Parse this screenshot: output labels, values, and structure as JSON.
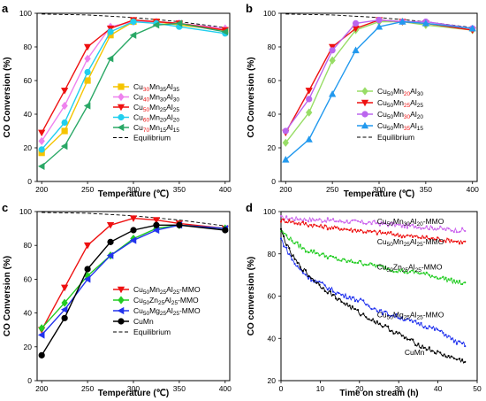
{
  "colors": {
    "frame": "#000000",
    "equilibrium": "#000000",
    "yellow": "#f5c400",
    "pink": "#ee82ee",
    "red": "#ee1111",
    "cyan": "#22cfee",
    "teal": "#2aa866",
    "lightgreen": "#98dd66",
    "purple": "#bb66ee",
    "blue": "#2299ee",
    "green": "#22cc22",
    "darkblue": "#2233ee",
    "black": "#000000",
    "violet": "#cc66ee"
  },
  "chart_data": [
    {
      "id": "a",
      "type": "line",
      "panel_label": "a",
      "xlabel": "Temperature (℃)",
      "ylabel": "CO Conversion (%)",
      "xlim": [
        195,
        405
      ],
      "ylim": [
        0,
        100
      ],
      "xticks": [
        200,
        250,
        300,
        350,
        400
      ],
      "yticks": [
        0,
        20,
        40,
        60,
        80,
        100
      ],
      "legend_position": "center-right",
      "series": [
        {
          "name": "Cu30Mn35Al35",
          "label_parts": [
            [
              "Cu",
              "k"
            ],
            [
              "30",
              "r"
            ],
            [
              "Mn",
              "k"
            ],
            [
              "35",
              "k"
            ],
            [
              "Al",
              "k"
            ],
            [
              "35",
              "k"
            ]
          ],
          "color": "yellow",
          "marker": "square",
          "x": [
            200,
            225,
            250,
            275,
            300,
            325,
            350,
            400
          ],
          "y": [
            17,
            30,
            60,
            87,
            95,
            95,
            93,
            90
          ]
        },
        {
          "name": "Cu40Mn30Al30",
          "label_parts": [
            [
              "Cu",
              "k"
            ],
            [
              "40",
              "r"
            ],
            [
              "Mn",
              "k"
            ],
            [
              "30",
              "k"
            ],
            [
              "Al",
              "k"
            ],
            [
              "30",
              "k"
            ]
          ],
          "color": "pink",
          "marker": "diamond",
          "x": [
            200,
            225,
            250,
            275,
            300,
            325,
            350,
            400
          ],
          "y": [
            24,
            45,
            73,
            92,
            95,
            95,
            94,
            91
          ]
        },
        {
          "name": "Cu50Mn25Al25",
          "label_parts": [
            [
              "Cu",
              "k"
            ],
            [
              "50",
              "r"
            ],
            [
              "Mn",
              "k"
            ],
            [
              "25",
              "k"
            ],
            [
              "Al",
              "k"
            ],
            [
              "25",
              "k"
            ]
          ],
          "color": "red",
          "marker": "triangle-down",
          "x": [
            200,
            225,
            250,
            275,
            300,
            325,
            350,
            400
          ],
          "y": [
            29,
            54,
            80,
            91,
            96,
            95,
            94,
            90
          ]
        },
        {
          "name": "Cu60Mn20Al20",
          "label_parts": [
            [
              "Cu",
              "k"
            ],
            [
              "60",
              "r"
            ],
            [
              "Mn",
              "k"
            ],
            [
              "20",
              "k"
            ],
            [
              "Al",
              "k"
            ],
            [
              "20",
              "k"
            ]
          ],
          "color": "cyan",
          "marker": "circle",
          "x": [
            200,
            225,
            250,
            275,
            300,
            325,
            350,
            400
          ],
          "y": [
            19,
            35,
            65,
            89,
            95,
            94,
            92,
            88
          ]
        },
        {
          "name": "Cu70Mn15Al15",
          "label_parts": [
            [
              "Cu",
              "k"
            ],
            [
              "70",
              "r"
            ],
            [
              "Mn",
              "k"
            ],
            [
              "15",
              "k"
            ],
            [
              "Al",
              "k"
            ],
            [
              "15",
              "k"
            ]
          ],
          "color": "teal",
          "marker": "triangle-left",
          "x": [
            200,
            225,
            250,
            275,
            300,
            325,
            350,
            400
          ],
          "y": [
            9,
            21,
            45,
            73,
            87,
            93,
            94,
            89
          ]
        }
      ],
      "equilibrium": {
        "name": "Equilibrium",
        "x": [
          200,
          250,
          300,
          350,
          400
        ],
        "y": [
          99.5,
          99,
          97.5,
          95,
          91.5
        ]
      }
    },
    {
      "id": "b",
      "type": "line",
      "panel_label": "b",
      "xlabel": "Temperature (℃)",
      "ylabel": "CO Conversion (%)",
      "xlim": [
        195,
        405
      ],
      "ylim": [
        0,
        100
      ],
      "xticks": [
        200,
        250,
        300,
        350,
        400
      ],
      "yticks": [
        0,
        20,
        40,
        60,
        80,
        100
      ],
      "legend_position": "center-right",
      "series": [
        {
          "name": "Cu50Mn20Al30",
          "label_parts": [
            [
              "Cu",
              "k"
            ],
            [
              "50",
              "k"
            ],
            [
              "Mn",
              "k"
            ],
            [
              "20",
              "r"
            ],
            [
              "Al",
              "k"
            ],
            [
              "30",
              "k"
            ]
          ],
          "color": "lightgreen",
          "marker": "diamond",
          "x": [
            200,
            225,
            250,
            275,
            300,
            325,
            350,
            400
          ],
          "y": [
            23,
            41,
            72,
            90,
            95,
            95,
            93,
            90
          ]
        },
        {
          "name": "Cu50Mn25Al25",
          "label_parts": [
            [
              "Cu",
              "k"
            ],
            [
              "50",
              "k"
            ],
            [
              "Mn",
              "k"
            ],
            [
              "25",
              "r"
            ],
            [
              "Al",
              "k"
            ],
            [
              "25",
              "k"
            ]
          ],
          "color": "red",
          "marker": "triangle-down",
          "x": [
            200,
            225,
            250,
            275,
            300,
            325,
            350,
            400
          ],
          "y": [
            29,
            54,
            80,
            91,
            96,
            95,
            94,
            90
          ]
        },
        {
          "name": "Cu50Mn30Al20",
          "label_parts": [
            [
              "Cu",
              "k"
            ],
            [
              "50",
              "k"
            ],
            [
              "Mn",
              "k"
            ],
            [
              "30",
              "r"
            ],
            [
              "Al",
              "k"
            ],
            [
              "20",
              "k"
            ]
          ],
          "color": "purple",
          "marker": "circle",
          "x": [
            200,
            225,
            250,
            275,
            300,
            325,
            350,
            400
          ],
          "y": [
            30,
            49,
            78,
            94,
            96,
            95,
            95,
            91
          ]
        },
        {
          "name": "Cu50Mn35Al15",
          "label_parts": [
            [
              "Cu",
              "k"
            ],
            [
              "50",
              "k"
            ],
            [
              "Mn",
              "k"
            ],
            [
              "35",
              "r"
            ],
            [
              "Al",
              "k"
            ],
            [
              "15",
              "k"
            ]
          ],
          "color": "blue",
          "marker": "triangle-up",
          "x": [
            200,
            225,
            250,
            275,
            300,
            325,
            350,
            400
          ],
          "y": [
            13,
            25,
            52,
            78,
            92,
            95,
            94,
            91
          ]
        }
      ],
      "equilibrium": {
        "name": "Equilibrium",
        "x": [
          200,
          250,
          300,
          350,
          400
        ],
        "y": [
          99.5,
          99,
          97.5,
          95,
          91.5
        ]
      }
    },
    {
      "id": "c",
      "type": "line",
      "panel_label": "c",
      "xlabel": "Temperature (℃)",
      "ylabel": "CO Conversion (%)",
      "xlim": [
        195,
        405
      ],
      "ylim": [
        0,
        100
      ],
      "xticks": [
        200,
        250,
        300,
        350,
        400
      ],
      "yticks": [
        0,
        20,
        40,
        60,
        80,
        100
      ],
      "legend_position": "bottom-right",
      "series": [
        {
          "name": "Cu50Mn25Al25-MMO",
          "label_parts": [
            [
              "Cu",
              "k"
            ],
            [
              "50",
              "k"
            ],
            [
              "Mn",
              "k"
            ],
            [
              "25",
              "k"
            ],
            [
              "Al",
              "k"
            ],
            [
              "25",
              "k"
            ],
            [
              "-MMO",
              "k"
            ]
          ],
          "color": "red",
          "marker": "triangle-down",
          "x": [
            200,
            225,
            250,
            275,
            300,
            325,
            350,
            400
          ],
          "y": [
            30,
            55,
            80,
            92,
            96,
            95,
            93,
            90
          ]
        },
        {
          "name": "Cu50Zn25Al25-MMO",
          "label_parts": [
            [
              "Cu",
              "k"
            ],
            [
              "50",
              "k"
            ],
            [
              "Zn",
              "k"
            ],
            [
              "25",
              "k"
            ],
            [
              "Al",
              "k"
            ],
            [
              "25",
              "k"
            ],
            [
              "-MMO",
              "k"
            ]
          ],
          "color": "green",
          "marker": "diamond",
          "x": [
            200,
            225,
            250,
            275,
            300,
            325,
            350,
            400
          ],
          "y": [
            31,
            46,
            62,
            74,
            84,
            90,
            92,
            90
          ]
        },
        {
          "name": "Cu50Mg25Al25-MMO",
          "label_parts": [
            [
              "Cu",
              "k"
            ],
            [
              "50",
              "k"
            ],
            [
              "Mg",
              "k"
            ],
            [
              "25",
              "k"
            ],
            [
              "Al",
              "k"
            ],
            [
              "25",
              "k"
            ],
            [
              "-MMO",
              "k"
            ]
          ],
          "color": "darkblue",
          "marker": "triangle-left",
          "x": [
            200,
            225,
            250,
            275,
            300,
            325,
            350,
            400
          ],
          "y": [
            27,
            42,
            60,
            74,
            83,
            89,
            92,
            90
          ]
        },
        {
          "name": "CuMn",
          "label_parts": [
            [
              "CuMn",
              "k"
            ]
          ],
          "color": "black",
          "marker": "circle",
          "x": [
            200,
            225,
            250,
            275,
            300,
            325,
            350,
            400
          ],
          "y": [
            15,
            37,
            66,
            82,
            89,
            92,
            92,
            89
          ]
        }
      ],
      "equilibrium": {
        "name": "Equilibrium",
        "x": [
          200,
          250,
          300,
          350,
          400
        ],
        "y": [
          99.5,
          99,
          97.5,
          95,
          91.5
        ]
      }
    },
    {
      "id": "d",
      "type": "line",
      "panel_label": "d",
      "xlabel": "Time on stream (h)",
      "ylabel": "CO conversion (%)",
      "xlim": [
        0,
        50
      ],
      "ylim": [
        20,
        100
      ],
      "xticks": [
        0,
        10,
        20,
        30,
        40,
        50
      ],
      "yticks": [
        20,
        40,
        60,
        80,
        100
      ],
      "legend_position": "inline-labels",
      "series": [
        {
          "name": "Cu50Mn30Al20-MMO",
          "label_parts": [
            [
              "Cu",
              "k"
            ],
            [
              "50",
              "k"
            ],
            [
              "Mn",
              "k"
            ],
            [
              "30",
              "k"
            ],
            [
              "Al",
              "k"
            ],
            [
              "20",
              "k"
            ],
            [
              "-MMO",
              "k"
            ]
          ],
          "color": "violet",
          "label_x": 24.5,
          "label_y": 94.2,
          "x": [
            0,
            5,
            10,
            15,
            20,
            25,
            30,
            35,
            40,
            47
          ],
          "y": [
            97,
            96.5,
            96,
            95.5,
            95,
            94.5,
            93.5,
            93,
            92,
            91
          ]
        },
        {
          "name": "Cu50Mn25Al25-MMO",
          "label_parts": [
            [
              "Cu",
              "k"
            ],
            [
              "50",
              "k"
            ],
            [
              "Mn",
              "k"
            ],
            [
              "25",
              "k"
            ],
            [
              "Al",
              "k"
            ],
            [
              "25",
              "k"
            ],
            [
              "-MMO",
              "k"
            ]
          ],
          "color": "red",
          "label_x": 24.5,
          "label_y": 84.5,
          "x": [
            0,
            5,
            10,
            15,
            20,
            25,
            30,
            35,
            40,
            47
          ],
          "y": [
            96,
            94.5,
            93,
            92,
            91,
            90,
            89,
            88,
            87,
            85.5
          ]
        },
        {
          "name": "Cu50Zn25Al25-MMO",
          "label_parts": [
            [
              "Cu",
              "k"
            ],
            [
              "50",
              "k"
            ],
            [
              "Zn",
              "k"
            ],
            [
              "25",
              "k"
            ],
            [
              "Al",
              "k"
            ],
            [
              "25",
              "k"
            ],
            [
              "-MMO",
              "k"
            ]
          ],
          "color": "green",
          "label_x": 24.5,
          "label_y": 72.5,
          "x": [
            0,
            3,
            6,
            10,
            15,
            20,
            25,
            30,
            35,
            40,
            47
          ],
          "y": [
            91,
            86,
            82,
            80,
            77,
            76,
            74,
            72,
            71,
            69,
            65.5
          ]
        },
        {
          "name": "Cu50Mg25Al25-MMO",
          "label_parts": [
            [
              "Cu",
              "k"
            ],
            [
              "50",
              "k"
            ],
            [
              "Mg",
              "k"
            ],
            [
              "25",
              "k"
            ],
            [
              "Al",
              "k"
            ],
            [
              "25",
              "k"
            ],
            [
              "-MMO",
              "k"
            ]
          ],
          "color": "darkblue",
          "label_x": 24.5,
          "label_y": 50,
          "x": [
            0,
            2,
            4,
            7,
            10,
            15,
            20,
            25,
            30,
            35,
            40,
            45,
            47
          ],
          "y": [
            87,
            80,
            74,
            69,
            66,
            61,
            58,
            53,
            50,
            47,
            44,
            38,
            37
          ]
        },
        {
          "name": "CuMn",
          "label_parts": [
            [
              "CuMn",
              "k"
            ]
          ],
          "color": "black",
          "label_x": 31.5,
          "label_y": 32.2,
          "x": [
            0,
            2,
            4,
            7,
            10,
            15,
            20,
            25,
            30,
            35,
            40,
            45,
            47
          ],
          "y": [
            91,
            82,
            76,
            70,
            65,
            58,
            52,
            47,
            42,
            37,
            33,
            30,
            29
          ]
        }
      ]
    }
  ]
}
